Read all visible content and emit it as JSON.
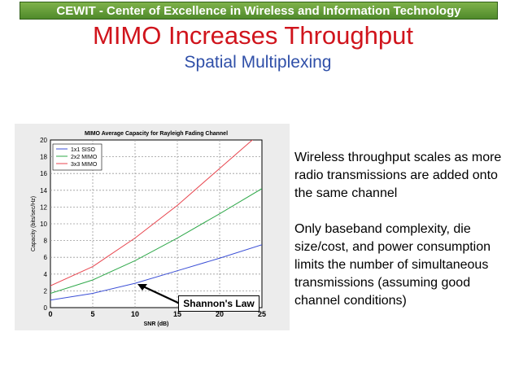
{
  "header": {
    "banner": "CEWIT - Center of Excellence in Wireless and Information Technology",
    "title": "MIMO Increases Throughput",
    "subtitle": "Spatial Multiplexing"
  },
  "bullets": [
    "Wireless throughput scales as more radio transmissions are added onto the same channel",
    "Only baseband complexity, die size/cost, and power consumption limits the number of simultaneous transmissions (assuming good channel conditions)"
  ],
  "annotation": {
    "label": "Shannon's Law"
  },
  "colors": {
    "banner": "#5e9a35",
    "title": "#d0141c",
    "subtitle": "#2f4fa8"
  },
  "chart_data": {
    "type": "line",
    "title": "MIMO Average Capacity for Rayleigh Fading Channel",
    "xlabel": "SNR (dB)",
    "ylabel": "Capacity (bits/sec/Hz)",
    "xlim": [
      0,
      25
    ],
    "ylim": [
      0,
      20
    ],
    "xticks": [
      0,
      5,
      10,
      15,
      20,
      25
    ],
    "yticks": [
      0,
      2,
      4,
      6,
      8,
      10,
      12,
      14,
      16,
      18,
      20
    ],
    "grid": true,
    "legend": "top-left",
    "x": [
      0,
      5,
      10,
      15,
      20,
      25
    ],
    "series": [
      {
        "name": "1x1 SISO",
        "color": "#3b4fd6",
        "values": [
          0.9,
          1.7,
          2.9,
          4.4,
          5.9,
          7.5
        ]
      },
      {
        "name": "2x2 MIMO",
        "color": "#2fa84a",
        "values": [
          1.7,
          3.3,
          5.6,
          8.3,
          11.2,
          14.2
        ]
      },
      {
        "name": "3x3 MIMO",
        "color": "#e8464f",
        "values": [
          2.6,
          4.9,
          8.3,
          12.2,
          16.6,
          21.0
        ]
      }
    ]
  }
}
